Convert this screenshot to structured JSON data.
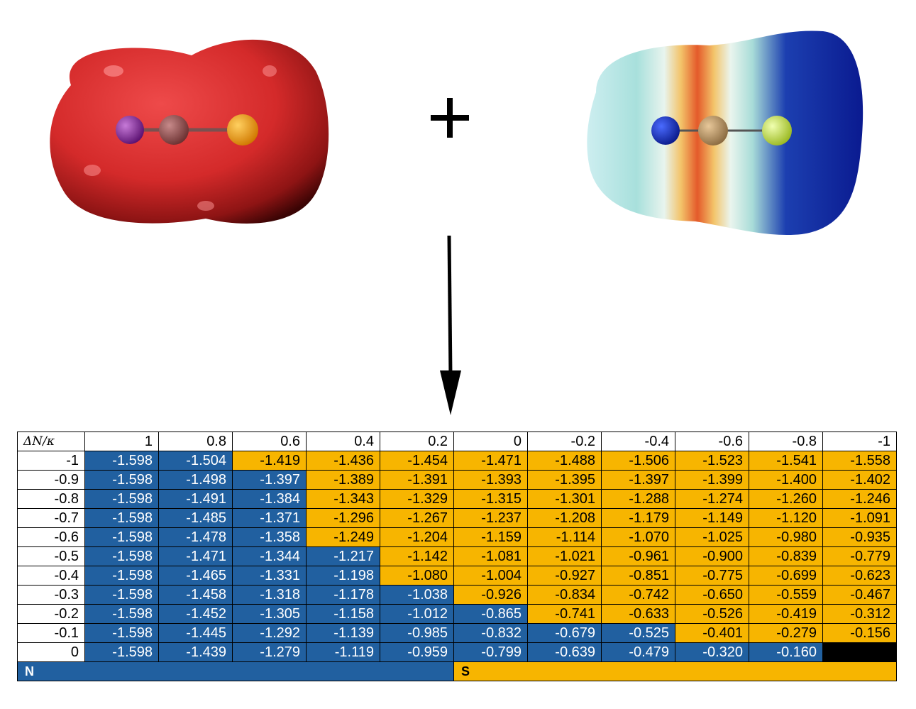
{
  "table": {
    "corner_label": "ΔN/κ",
    "columns": [
      "1",
      "0.8",
      "0.6",
      "0.4",
      "0.2",
      "0",
      "-0.2",
      "-0.4",
      "-0.6",
      "-0.8",
      "-1"
    ],
    "rows": [
      {
        "label": "-1",
        "values": [
          "-1.598",
          "-1.504",
          "-1.419",
          "-1.436",
          "-1.454",
          "-1.471",
          "-1.488",
          "-1.506",
          "-1.523",
          "-1.541",
          "-1.558"
        ],
        "colors": [
          "N",
          "N",
          "S",
          "S",
          "S",
          "S",
          "S",
          "S",
          "S",
          "S",
          "S"
        ]
      },
      {
        "label": "-0.9",
        "values": [
          "-1.598",
          "-1.498",
          "-1.397",
          "-1.389",
          "-1.391",
          "-1.393",
          "-1.395",
          "-1.397",
          "-1.399",
          "-1.400",
          "-1.402"
        ],
        "colors": [
          "N",
          "N",
          "N",
          "S",
          "S",
          "S",
          "S",
          "S",
          "S",
          "S",
          "S"
        ]
      },
      {
        "label": "-0.8",
        "values": [
          "-1.598",
          "-1.491",
          "-1.384",
          "-1.343",
          "-1.329",
          "-1.315",
          "-1.301",
          "-1.288",
          "-1.274",
          "-1.260",
          "-1.246"
        ],
        "colors": [
          "N",
          "N",
          "N",
          "S",
          "S",
          "S",
          "S",
          "S",
          "S",
          "S",
          "S"
        ]
      },
      {
        "label": "-0.7",
        "values": [
          "-1.598",
          "-1.485",
          "-1.371",
          "-1.296",
          "-1.267",
          "-1.237",
          "-1.208",
          "-1.179",
          "-1.149",
          "-1.120",
          "-1.091"
        ],
        "colors": [
          "N",
          "N",
          "N",
          "S",
          "S",
          "S",
          "S",
          "S",
          "S",
          "S",
          "S"
        ]
      },
      {
        "label": "-0.6",
        "values": [
          "-1.598",
          "-1.478",
          "-1.358",
          "-1.249",
          "-1.204",
          "-1.159",
          "-1.114",
          "-1.070",
          "-1.025",
          "-0.980",
          "-0.935"
        ],
        "colors": [
          "N",
          "N",
          "N",
          "S",
          "S",
          "S",
          "S",
          "S",
          "S",
          "S",
          "S"
        ]
      },
      {
        "label": "-0.5",
        "values": [
          "-1.598",
          "-1.471",
          "-1.344",
          "-1.217",
          "-1.142",
          "-1.081",
          "-1.021",
          "-0.961",
          "-0.900",
          "-0.839",
          "-0.779"
        ],
        "colors": [
          "N",
          "N",
          "N",
          "N",
          "S",
          "S",
          "S",
          "S",
          "S",
          "S",
          "S"
        ]
      },
      {
        "label": "-0.4",
        "values": [
          "-1.598",
          "-1.465",
          "-1.331",
          "-1.198",
          "-1.080",
          "-1.004",
          "-0.927",
          "-0.851",
          "-0.775",
          "-0.699",
          "-0.623"
        ],
        "colors": [
          "N",
          "N",
          "N",
          "N",
          "S",
          "S",
          "S",
          "S",
          "S",
          "S",
          "S"
        ]
      },
      {
        "label": "-0.3",
        "values": [
          "-1.598",
          "-1.458",
          "-1.318",
          "-1.178",
          "-1.038",
          "-0.926",
          "-0.834",
          "-0.742",
          "-0.650",
          "-0.559",
          "-0.467"
        ],
        "colors": [
          "N",
          "N",
          "N",
          "N",
          "N",
          "S",
          "S",
          "S",
          "S",
          "S",
          "S"
        ]
      },
      {
        "label": "-0.2",
        "values": [
          "-1.598",
          "-1.452",
          "-1.305",
          "-1.158",
          "-1.012",
          "-0.865",
          "-0.741",
          "-0.633",
          "-0.526",
          "-0.419",
          "-0.312"
        ],
        "colors": [
          "N",
          "N",
          "N",
          "N",
          "N",
          "N",
          "S",
          "S",
          "S",
          "S",
          "S"
        ]
      },
      {
        "label": "-0.1",
        "values": [
          "-1.598",
          "-1.445",
          "-1.292",
          "-1.139",
          "-0.985",
          "-0.832",
          "-0.679",
          "-0.525",
          "-0.401",
          "-0.279",
          "-0.156"
        ],
        "colors": [
          "N",
          "N",
          "N",
          "N",
          "N",
          "N",
          "N",
          "N",
          "S",
          "S",
          "S"
        ]
      },
      {
        "label": "0",
        "values": [
          "-1.598",
          "-1.439",
          "-1.279",
          "-1.119",
          "-0.959",
          "-0.799",
          "-0.639",
          "-0.479",
          "-0.320",
          "-0.160",
          ""
        ],
        "colors": [
          "N",
          "N",
          "N",
          "N",
          "N",
          "N",
          "N",
          "N",
          "N",
          "N",
          "X"
        ]
      }
    ],
    "legend": {
      "n_label": "N",
      "s_label": "S"
    }
  },
  "colors": {
    "n_blue": "#2160a0",
    "s_gold": "#f7b500",
    "iso_red": "#d42a2a"
  },
  "symbols": {
    "plus": "+"
  }
}
